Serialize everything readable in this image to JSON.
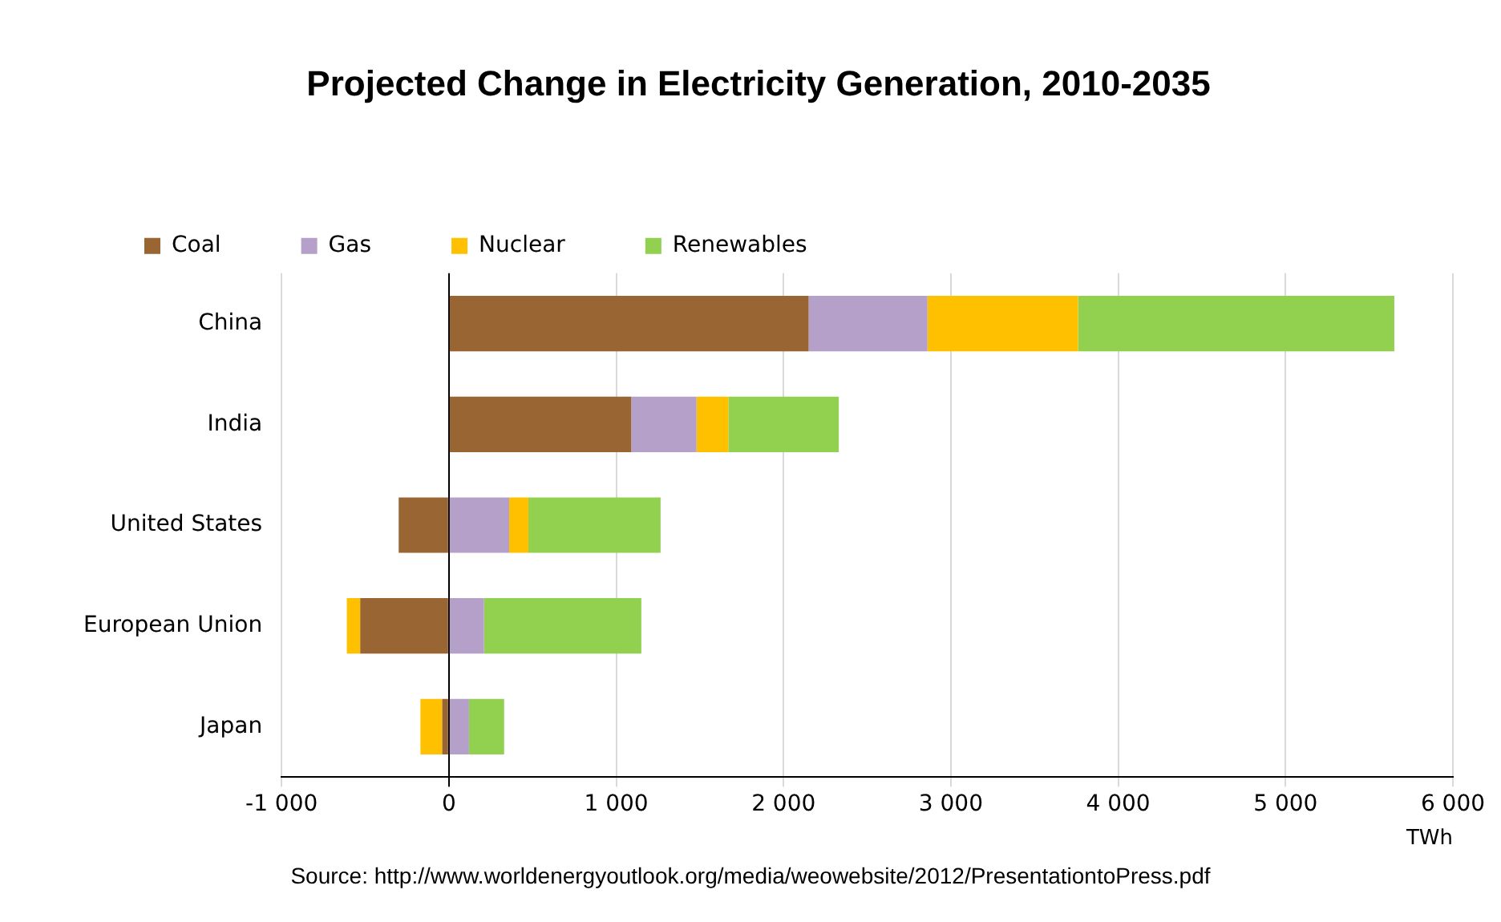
{
  "chart_data": {
    "type": "bar",
    "orientation": "horizontal",
    "stacked": true,
    "title": "Projected Change in Electricity Generation, 2010-2035",
    "xlabel": "TWh",
    "categories": [
      "China",
      "India",
      "United States",
      "European Union",
      "Japan"
    ],
    "series": [
      {
        "name": "Coal",
        "color": "#996633",
        "values": [
          2150,
          1090,
          -300,
          -530,
          -40
        ]
      },
      {
        "name": "Gas",
        "color": "#b4a0c8",
        "values": [
          710,
          390,
          360,
          210,
          120
        ]
      },
      {
        "name": "Nuclear",
        "color": "#ffc000",
        "values": [
          900,
          190,
          115,
          -80,
          -130
        ]
      },
      {
        "name": "Renewables",
        "color": "#92d050",
        "values": [
          1890,
          660,
          790,
          940,
          210
        ]
      }
    ],
    "xlim": [
      -1000,
      6000
    ],
    "xticks": [
      {
        "value": -1000,
        "label": "-1 000"
      },
      0,
      {
        "value": 1000,
        "label": "1 000"
      },
      {
        "value": 2000,
        "label": "2 000"
      },
      {
        "value": 3000,
        "label": "3 000"
      },
      {
        "value": 4000,
        "label": "4 000"
      },
      {
        "value": 5000,
        "label": "5 000"
      },
      {
        "value": 6000,
        "label": "6 000"
      }
    ],
    "grid": "x",
    "legend": "top",
    "annotations": [
      "Source: http://www.worldenergyoutlook.org/media/weowebsite/2012/PresentationtoPress.pdf"
    ]
  }
}
